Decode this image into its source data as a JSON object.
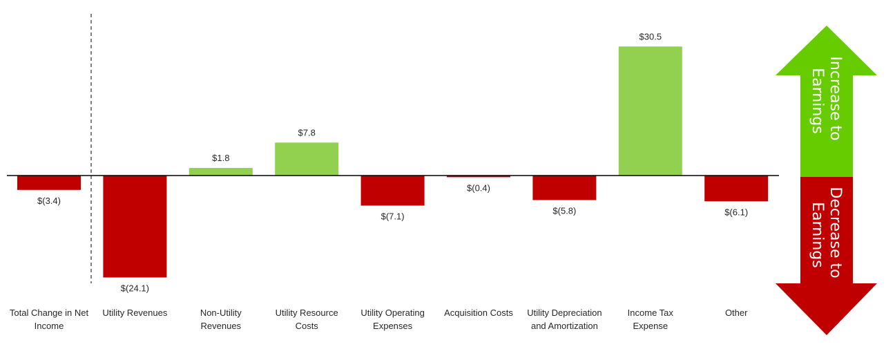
{
  "chart_data": {
    "type": "bar",
    "categories": [
      [
        "Total Change in Net",
        "Income"
      ],
      [
        "Utility Revenues"
      ],
      [
        "Non-Utility",
        "Revenues"
      ],
      [
        "Utility Resource",
        "Costs"
      ],
      [
        "Utility Operating",
        "Expenses"
      ],
      [
        "Acquisition Costs"
      ],
      [
        "Utility Depreciation",
        "and Amortization"
      ],
      [
        "Income Tax",
        "Expense"
      ],
      [
        "Other"
      ]
    ],
    "values": [
      -3.4,
      -24.1,
      1.8,
      7.8,
      -7.1,
      -0.4,
      -5.8,
      30.5,
      -6.1
    ],
    "value_labels": [
      "$(3.4)",
      "$(24.1)",
      "$1.8",
      "$7.8",
      "$(7.1)",
      "$(0.4)",
      "$(5.8)",
      "$30.5",
      "$(6.1)"
    ],
    "ylim": [
      -24.1,
      30.5
    ],
    "grid": false,
    "colors": {
      "positive": "#92d050",
      "negative": "#c00000"
    },
    "legend_arrows": {
      "up": {
        "lines": [
          "Increase to",
          "Earnings"
        ],
        "color": "#66cc00"
      },
      "down": {
        "lines": [
          "Decrease to",
          "Earnings"
        ],
        "color": "#c00000"
      }
    }
  }
}
